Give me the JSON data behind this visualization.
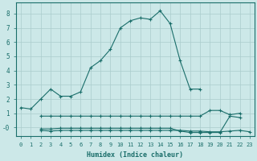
{
  "xlabel": "Humidex (Indice chaleur)",
  "bg_color": "#cce8e8",
  "grid_color": "#aacccc",
  "line_color": "#1a6e6a",
  "xlim": [
    -0.5,
    23.5
  ],
  "ylim": [
    -0.6,
    8.8
  ],
  "yticks": [
    0,
    1,
    2,
    3,
    4,
    5,
    6,
    7,
    8
  ],
  "ytick_labels": [
    "-0",
    "1",
    "2",
    "3",
    "4",
    "5",
    "6",
    "7",
    "8"
  ],
  "xticks": [
    0,
    1,
    2,
    3,
    4,
    5,
    6,
    7,
    8,
    9,
    10,
    11,
    12,
    13,
    14,
    15,
    16,
    17,
    18,
    19,
    20,
    21,
    22,
    23
  ],
  "line1_x": [
    0,
    1,
    2,
    3,
    4,
    5,
    6,
    7,
    8,
    9,
    10,
    11,
    12,
    13,
    14,
    15,
    16,
    17,
    18
  ],
  "line1_y": [
    1.4,
    1.3,
    2.0,
    2.7,
    2.2,
    2.2,
    2.5,
    4.2,
    4.7,
    5.5,
    7.0,
    7.5,
    7.7,
    7.6,
    8.2,
    7.3,
    4.7,
    2.7,
    2.7
  ],
  "line2_x": [
    2,
    3,
    4,
    5,
    6,
    7,
    8,
    9,
    10,
    11,
    12,
    13,
    14,
    15,
    16,
    17,
    18,
    19,
    20,
    21,
    22
  ],
  "line2_y": [
    0.8,
    0.8,
    0.8,
    0.8,
    0.8,
    0.8,
    0.8,
    0.8,
    0.8,
    0.8,
    0.8,
    0.8,
    0.8,
    0.8,
    0.8,
    0.8,
    0.8,
    1.2,
    1.2,
    0.9,
    1.0
  ],
  "line3_x": [
    2,
    3,
    4,
    5,
    6,
    7,
    8,
    9,
    10,
    11,
    12,
    13,
    14,
    15,
    16,
    17,
    18,
    19,
    20,
    21,
    22,
    23
  ],
  "line3_y": [
    -0.2,
    -0.25,
    -0.2,
    -0.2,
    -0.2,
    -0.2,
    -0.2,
    -0.2,
    -0.2,
    -0.2,
    -0.2,
    -0.2,
    -0.2,
    -0.2,
    -0.2,
    -0.25,
    -0.25,
    -0.3,
    -0.3,
    -0.25,
    -0.2,
    -0.3
  ],
  "line4_x": [
    2,
    3,
    4,
    5,
    6,
    7,
    8,
    9,
    10,
    11,
    12,
    13,
    14,
    15,
    16,
    17,
    18,
    19,
    20,
    21,
    22
  ],
  "line4_y": [
    -0.1,
    -0.1,
    -0.05,
    -0.05,
    -0.05,
    -0.05,
    -0.05,
    -0.05,
    -0.05,
    -0.05,
    -0.05,
    -0.05,
    -0.05,
    -0.05,
    -0.25,
    -0.35,
    -0.35,
    -0.35,
    -0.35,
    0.8,
    0.7
  ]
}
